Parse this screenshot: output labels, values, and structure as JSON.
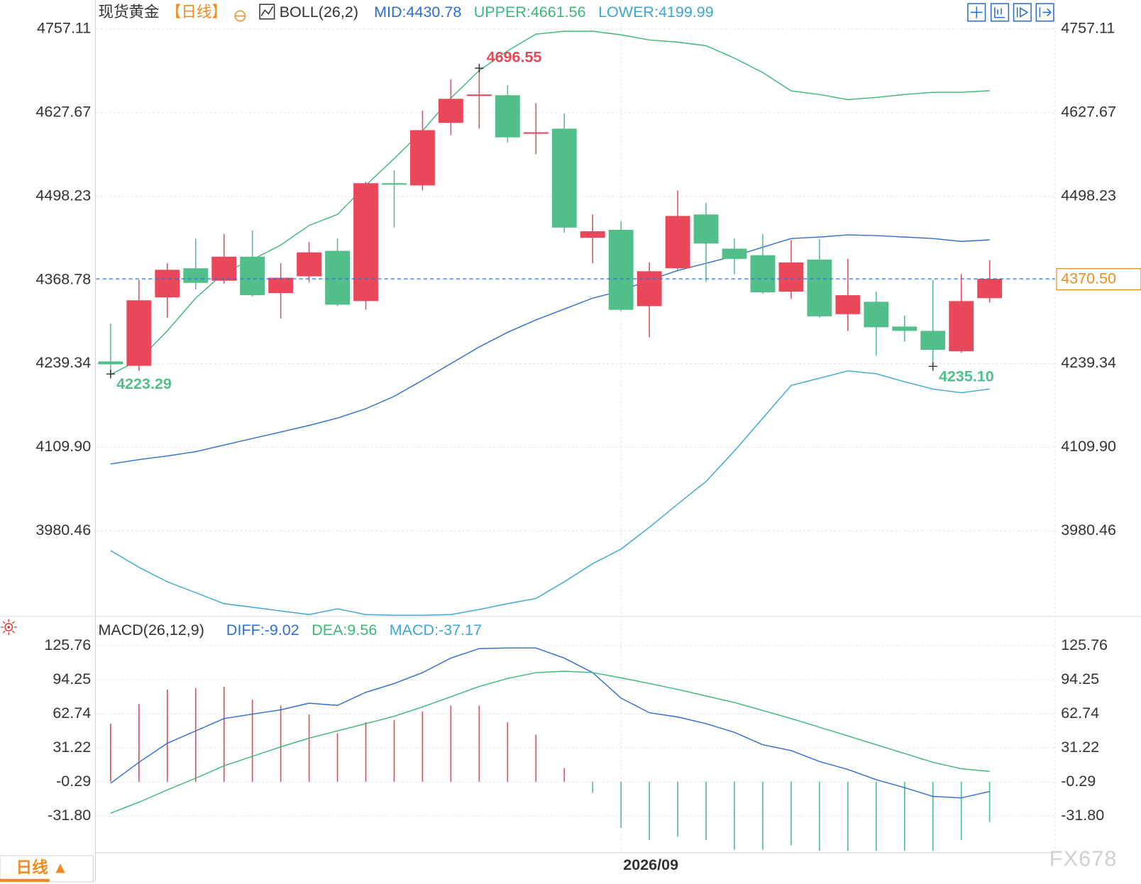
{
  "period_tab": "日线 ▲",
  "watermark": "FX678",
  "chart_data": [
    {
      "type": "candlestick",
      "title": "现货黄金",
      "period": "【日线】",
      "indicator": "BOLL(26,2)",
      "categories": [
        null,
        null,
        null,
        null,
        null,
        null,
        null,
        null,
        null,
        null,
        null,
        null,
        null,
        null,
        null,
        null,
        null,
        null,
        "2026/09",
        null,
        null,
        null,
        null,
        null,
        null,
        null,
        null,
        null,
        null,
        null,
        null,
        null
      ],
      "open": [
        4242.7,
        4235.9,
        4341.8,
        4386.8,
        4367.6,
        4404.8,
        4348.5,
        4374.4,
        4413.8,
        4336.1,
        4518.5,
        4515.1,
        4611.9,
        4653.5,
        4654.7,
        4595.0,
        4602.9,
        4434.1,
        4446.4,
        4328.3,
        4386.8,
        4470.1,
        4417.2,
        4407.1,
        4350.8,
        4400.3,
        4315.9,
        4335.0,
        4296.7,
        4290.0,
        4258.5,
        4340.6
      ],
      "high": [
        4301.2,
        4368.8,
        4394.7,
        4432.9,
        4439.7,
        4445.3,
        4394.7,
        4427.3,
        4432.9,
        4520.7,
        4538.7,
        4631.0,
        4679.4,
        4696.55,
        4670.4,
        4642.3,
        4626.5,
        4470.1,
        4460.0,
        4395.8,
        4507.2,
        4488.1,
        4432.9,
        4439.7,
        4430.7,
        4431.8,
        4401.4,
        4350.8,
        4313.6,
        4368.8,
        4377.8,
        4399.2
      ],
      "low": [
        4223.29,
        4228.1,
        4310.3,
        4354.1,
        4363.1,
        4342.9,
        4309.1,
        4365.4,
        4328.3,
        4322.6,
        4449.8,
        4507.2,
        4592.8,
        4602.9,
        4581.5,
        4563.5,
        4441.9,
        4394.7,
        4320.4,
        4279.9,
        4384.5,
        4365.4,
        4377.8,
        4347.4,
        4339.5,
        4310.3,
        4290.0,
        4251.7,
        4273.1,
        4235.1,
        4256.2,
        4333.9
      ],
      "close": [
        4238.2,
        4337.3,
        4384.5,
        4364.3,
        4404.8,
        4345.2,
        4372.2,
        4411.5,
        4330.5,
        4518.5,
        4516.2,
        4600.6,
        4649.1,
        4655.8,
        4589.4,
        4597.3,
        4449.8,
        4444.2,
        4322.6,
        4382.3,
        4467.8,
        4425.1,
        4401.4,
        4349.6,
        4395.8,
        4312.5,
        4345.2,
        4295.6,
        4290.0,
        4260.7,
        4336.1,
        4370.5
      ],
      "up_color": "#e8485a",
      "down_color": "#52bf8a",
      "series": [
        {
          "name": "MID:4430.78",
          "color": "#2f6fd0",
          "values": [
            4084.0,
            4090.8,
            4096.4,
            4103.1,
            4113.3,
            4123.4,
            4133.5,
            4143.7,
            4154.9,
            4169.5,
            4188.7,
            4213.5,
            4239.3,
            4265.2,
            4287.7,
            4306.9,
            4323.8,
            4340.6,
            4351.9,
            4368.8,
            4383.4,
            4394.7,
            4405.9,
            4419.4,
            4432.9,
            4435.2,
            4438.6,
            4437.4,
            4435.2,
            4432.9,
            4428.4,
            4430.78
          ]
        },
        {
          "name": "UPPER:4661.56",
          "color": "#3cb878",
          "values": [
            4222.5,
            4245.0,
            4290.0,
            4340.6,
            4380.0,
            4400.3,
            4422.8,
            4453.2,
            4470.1,
            4515.1,
            4556.7,
            4599.5,
            4650.2,
            4692.9,
            4723.3,
            4749.2,
            4753.7,
            4753.7,
            4748.1,
            4740.2,
            4736.8,
            4731.2,
            4712.1,
            4689.6,
            4661.4,
            4655.8,
            4647.9,
            4651.3,
            4655.8,
            4659.2,
            4659.2,
            4661.56
          ]
        },
        {
          "name": "LOWER:4199.99",
          "color": "#3aa7d6",
          "values": [
            3950.1,
            3924.2,
            3901.7,
            3884.8,
            3867.9,
            3862.3,
            3856.6,
            3851.0,
            3860.0,
            3851.0,
            3849.9,
            3849.9,
            3851.0,
            3858.9,
            3867.9,
            3875.8,
            3901.7,
            3929.8,
            3952.3,
            3986.1,
            4022.1,
            4057.0,
            4104.3,
            4154.9,
            4205.6,
            4216.8,
            4228.1,
            4223.6,
            4211.2,
            4200.0,
            4194.3,
            4199.99
          ]
        }
      ],
      "ylim": [
        3845,
        4802
      ],
      "yticks": [
        4757.11,
        4627.67,
        4498.23,
        4368.78,
        4239.34,
        {
          "value": 4109.9,
          "label": "4109.90"
        },
        3980.46
      ],
      "grid": true,
      "annotations": [
        {
          "value": 4696.55,
          "label": "4696.55"
        },
        {
          "value": 4223.29,
          "label": "4223.29"
        },
        {
          "value": 4235.1,
          "label": "4235.10"
        }
      ],
      "last_price": {
        "value": 4370.5,
        "label": "4370.50"
      }
    },
    {
      "type": "macd",
      "indicator": "MACD(26,12,9)",
      "series": [
        {
          "name": "DIFF:-9.02",
          "color": "#2f6fd0",
          "values": [
            -1.5,
            18.0,
            35.5,
            47.0,
            58.4,
            62.5,
            66.5,
            72.6,
            70.6,
            82.7,
            90.8,
            100.9,
            114.3,
            123.1,
            123.7,
            123.7,
            114.3,
            100.9,
            77.3,
            63.8,
            59.8,
            53.7,
            45.6,
            34.2,
            28.8,
            18.7,
            11.3,
            1.9,
            -5.5,
            -13.6,
            -15.0,
            -9.02
          ]
        },
        {
          "name": "DEA:9.56",
          "color": "#3cb878",
          "values": [
            -29.1,
            -19.0,
            -7.6,
            3.2,
            14.7,
            23.4,
            32.2,
            40.3,
            47.0,
            53.7,
            60.5,
            69.2,
            78.6,
            88.1,
            95.5,
            100.9,
            102.2,
            100.9,
            96.1,
            90.8,
            85.4,
            79.3,
            73.2,
            65.9,
            58.4,
            50.4,
            42.3,
            34.2,
            26.1,
            18.0,
            12.0,
            9.56
          ]
        }
      ],
      "histogram": {
        "name": "MACD:-37.17",
        "color": "#3aa7d6",
        "up_color": "#e8485a",
        "down_color": "#52bf8a",
        "values": [
          53.6,
          71.8,
          85.2,
          86.6,
          87.9,
          75.8,
          70.4,
          62.3,
          44.8,
          54.9,
          57.0,
          65.0,
          70.4,
          70.4,
          54.9,
          43.5,
          12.5,
          -10.4,
          -42.7,
          -54.1,
          -50.8,
          -54.1,
          -62.9,
          -62.9,
          -58.8,
          -64,
          -64,
          -64,
          -64,
          -64,
          -54.1,
          -37.17
        ]
      },
      "ylim": [
        -65,
        151
      ],
      "yticks": [
        125.76,
        94.25,
        62.74,
        31.22,
        -0.29,
        {
          "value": -31.8,
          "label": "-31.80"
        }
      ],
      "grid": true
    }
  ]
}
